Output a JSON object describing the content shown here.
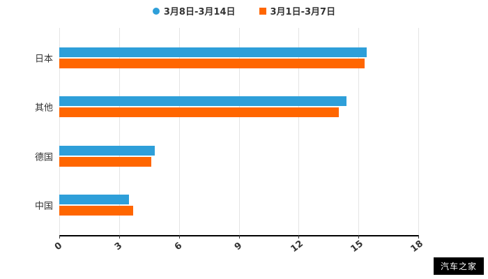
{
  "chart_data": {
    "type": "bar",
    "orientation": "horizontal",
    "categories": [
      "日本",
      "其他",
      "德国",
      "中国"
    ],
    "series": [
      {
        "name": "3月8日-3月14日",
        "color": "#2e9fd9",
        "values": [
          15.4,
          14.4,
          4.8,
          3.5
        ]
      },
      {
        "name": "3月1日-3月7日",
        "color": "#ff6600",
        "values": [
          15.3,
          14.0,
          4.6,
          3.7
        ]
      }
    ],
    "xlim": [
      0,
      18
    ],
    "x_ticks": [
      0,
      3,
      6,
      9,
      12,
      15,
      18
    ],
    "grid": true,
    "legend_position": "top",
    "title": "",
    "xlabel": "",
    "ylabel": ""
  },
  "legend": {
    "items": [
      {
        "label": "3月8日-3月14日",
        "color": "#2e9fd9",
        "marker": "circle-icon"
      },
      {
        "label": "3月1日-3月7日",
        "color": "#ff6600",
        "marker": "square-icon"
      }
    ]
  },
  "watermark": {
    "text": "汽车之家"
  },
  "colors": {
    "series_blue": "#2e9fd9",
    "series_orange": "#ff6600",
    "axis": "#000000",
    "grid": "#e4e4e4",
    "text": "#333333",
    "watermark_bg": "#000000",
    "watermark_text": "#ffffff"
  }
}
